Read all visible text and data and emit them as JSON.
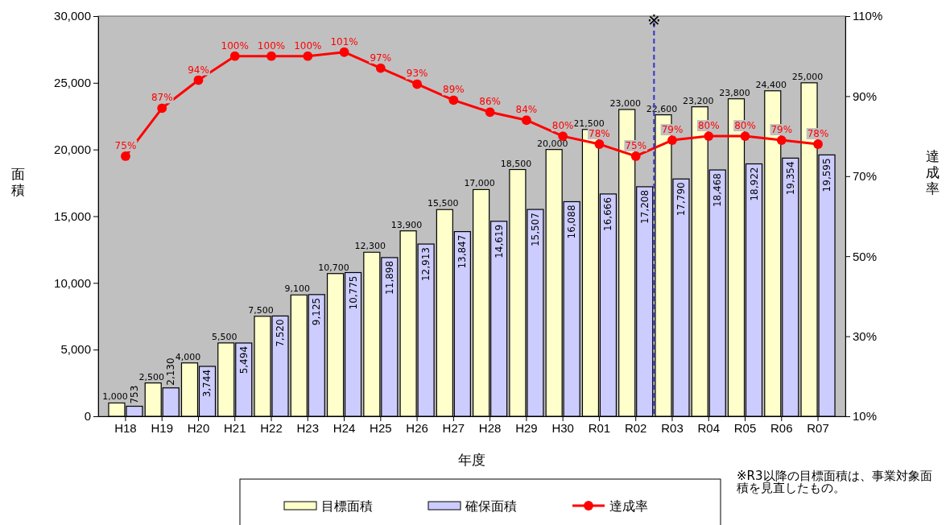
{
  "chart_data": {
    "type": "bar",
    "xlabel": "年度",
    "ylabel": "面積",
    "y2label": "達成率",
    "categories": [
      "H18",
      "H19",
      "H20",
      "H21",
      "H22",
      "H23",
      "H24",
      "H25",
      "H26",
      "H27",
      "H28",
      "H29",
      "H30",
      "R01",
      "R02",
      "R03",
      "R04",
      "R05",
      "R06",
      "R07"
    ],
    "series": [
      {
        "name": "目標面積",
        "color": "#ffffcc",
        "values": [
          1000,
          2500,
          4000,
          5500,
          7500,
          9100,
          10700,
          12300,
          13900,
          15500,
          17000,
          18500,
          20000,
          21500,
          23000,
          22600,
          23200,
          23800,
          24400,
          25000
        ],
        "value_labels": [
          "1,000",
          "2,500",
          "4,000",
          "5,500",
          "7,500",
          "9,100",
          "10,700",
          "12,300",
          "13,900",
          "15,500",
          "17,000",
          "18,500",
          "20,000",
          "21,500",
          "23,000",
          "22,600",
          "23,200",
          "23,800",
          "24,400",
          "25,000"
        ]
      },
      {
        "name": "確保面積",
        "color": "#ccccff",
        "values": [
          753,
          2130,
          3744,
          5494,
          7520,
          9125,
          10775,
          11898,
          12913,
          13847,
          14619,
          15507,
          16088,
          16666,
          17208,
          17790,
          18468,
          18922,
          19354,
          19595
        ],
        "value_labels": [
          "753",
          "2,130",
          "3,744",
          "5,494",
          "7,520",
          "9,125",
          "10,775",
          "11,898",
          "12,913",
          "13,847",
          "14,619",
          "15,507",
          "16,088",
          "16,666",
          "17,208",
          "17,790",
          "18,468",
          "18,922",
          "19,354",
          "19,595"
        ]
      },
      {
        "name": "達成率",
        "type": "line",
        "axis": "y2",
        "color": "#ff0000",
        "values": [
          75,
          87,
          94,
          100,
          100,
          100,
          101,
          97,
          93,
          89,
          86,
          84,
          80,
          78,
          75,
          79,
          80,
          80,
          79,
          78
        ],
        "value_labels": [
          "75%",
          "87%",
          "94%",
          "100%",
          "100%",
          "100%",
          "101%",
          "97%",
          "93%",
          "89%",
          "86%",
          "84%",
          "80%",
          "78%",
          "75%",
          "79%",
          "80%",
          "80%",
          "79%",
          "78%"
        ]
      }
    ],
    "ylim": [
      0,
      30000
    ],
    "yticks": [
      0,
      {
        "value": 5000,
        "label": "5,000"
      },
      {
        "value": 10000,
        "label": "10,000"
      },
      {
        "value": 15000,
        "label": "15,000"
      },
      {
        "value": 20000,
        "label": "20,000"
      },
      {
        "value": 25000,
        "label": "25,000"
      },
      {
        "value": 30000,
        "label": "30,000"
      }
    ],
    "y2lim": [
      10,
      110
    ],
    "y2ticks": [
      {
        "value": 10,
        "label": "10%"
      },
      {
        "value": 30,
        "label": "30%"
      },
      {
        "value": 50,
        "label": "50%"
      },
      {
        "value": 70,
        "label": "70%"
      },
      {
        "value": 90,
        "label": "90%"
      },
      {
        "value": 110,
        "label": "110%"
      }
    ],
    "ref_lines": [
      {
        "axis": "x",
        "value": "R03",
        "label": "※",
        "color": "#3333cc",
        "line_style": "dashed"
      }
    ],
    "annotations": [
      "※R3以降の目標面積は、事業対象面積を見直したもの。"
    ],
    "marker": "circle",
    "legend": "bottom",
    "grid": false
  }
}
